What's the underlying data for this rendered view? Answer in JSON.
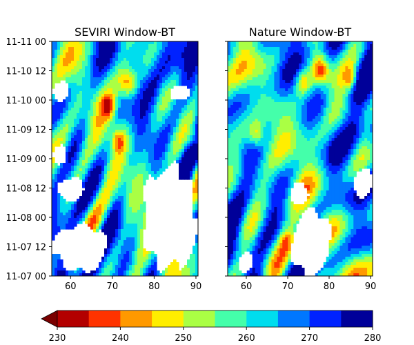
{
  "chart_data": [
    {
      "type": "heatmap",
      "title": "SEVIRI Window-BT",
      "xlabel": "",
      "ylabel": "",
      "x_ticks": [
        60,
        70,
        80,
        90
      ],
      "xlim": [
        55.5,
        90.5
      ],
      "y_tick_labels": [
        "11-07 00",
        "11-07 12",
        "11-08 00",
        "11-08 12",
        "11-09 00",
        "11-09 12",
        "11-10 00",
        "11-10 12",
        "11-11 00"
      ],
      "y_range": [
        "11-07 00",
        "11-11 00"
      ],
      "value_range": [
        230,
        280
      ],
      "masked_values": "white",
      "warmest_peak": {
        "x": 75,
        "y": "11-10 12"
      }
    },
    {
      "type": "heatmap",
      "title": "Nature Window-BT",
      "xlabel": "",
      "ylabel": "",
      "x_ticks": [
        60,
        70,
        80,
        90
      ],
      "xlim": [
        55.5,
        90.5
      ],
      "y_tick_labels": [
        "11-07 00",
        "11-07 12",
        "11-08 00",
        "11-08 12",
        "11-09 00",
        "11-09 12",
        "11-10 00",
        "11-10 12",
        "11-11 00"
      ],
      "y_range": [
        "11-07 00",
        "11-11 00"
      ],
      "value_range": [
        230,
        280
      ],
      "masked_values": "white",
      "warmest_peak": {
        "x": 79,
        "y": "11-10 14"
      }
    }
  ],
  "colorbar": {
    "ticks": [
      230,
      240,
      250,
      260,
      270,
      280
    ],
    "extend": "min",
    "levels": [
      230,
      235,
      240,
      245,
      250,
      255,
      260,
      265,
      270,
      275,
      280
    ],
    "colors": [
      "#b30000",
      "#ff3300",
      "#ff9900",
      "#ffee00",
      "#aaff44",
      "#44ffaa",
      "#00ddee",
      "#0077ff",
      "#0022ff",
      "#000099"
    ],
    "under_color": "#7a0000"
  }
}
